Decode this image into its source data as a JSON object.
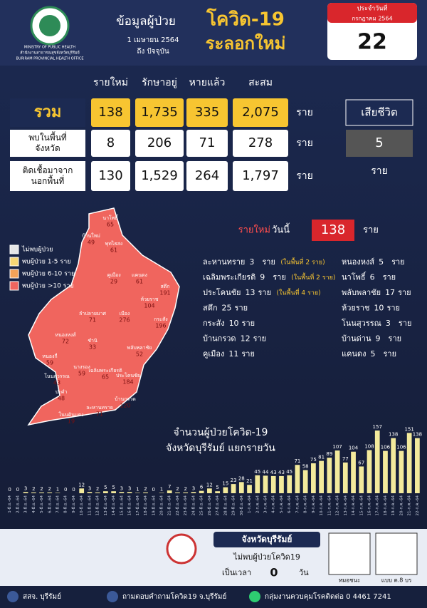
{
  "header": {
    "logo_text": [
      "MINISTRY OF PUBLIC HEALTH",
      "สำนักงานสาธารณสุขจังหวัดบุรีรัมย์",
      "BURIRAM PROVINCIAL HEALTH OFFICE"
    ],
    "title_prefix": "ข้อมูลผู้ป่วย",
    "title_main": "โควิด-19",
    "title_sub": "ระลอกใหม่",
    "date_from": "1 เมษายน 2564",
    "date_to": "ถึง ปัจจุบัน"
  },
  "calendar": {
    "label": "ประจำวันที่",
    "month": "กรกฎาคม 2564",
    "day": 22
  },
  "table": {
    "columns": [
      "รายใหม่",
      "รักษาอยู่",
      "หายแล้ว",
      "สะสม"
    ],
    "unit": "ราย",
    "rows": [
      {
        "label": [
          "รวม"
        ],
        "values": [
          138,
          1735,
          335,
          2075
        ],
        "value_labels": [
          "138",
          "1,735",
          "335",
          "2,075"
        ]
      },
      {
        "label": [
          "พบในพื้นที่",
          "จังหวัด"
        ],
        "values": [
          8,
          206,
          71,
          278
        ],
        "value_labels": [
          "8",
          "206",
          "71",
          "278"
        ]
      },
      {
        "label": [
          "ติดเชื้อมาจาก",
          "นอกพื้นที่"
        ],
        "values": [
          130,
          1529,
          264,
          1797
        ],
        "value_labels": [
          "130",
          "1,529",
          "264",
          "1,797"
        ]
      }
    ],
    "deaths": {
      "label": "เสียชีวิต",
      "value": 5,
      "unit": "ราย"
    }
  },
  "legend": [
    {
      "label": "ไม่พบผู้ป่วย",
      "color": "#e6e6e6"
    },
    {
      "label": "พบผู้ป่วย 1-5 ราย",
      "color": "#f7d774"
    },
    {
      "label": "พบผู้ป่วย 6-10 ราย",
      "color": "#f4a259"
    },
    {
      "label": "พบผู้ป่วย >10 ราย",
      "color": "#f0655e"
    }
  ],
  "today": {
    "label_a": "รายใหม่",
    "label_b": "วันนี้",
    "value": 138,
    "unit": "ราย"
  },
  "map_labels": [
    {
      "name": "นาโพธิ์",
      "value": 65
    },
    {
      "name": "บ้านใหม่",
      "value": 49
    },
    {
      "name": "พุทไธสง",
      "value": 61
    },
    {
      "name": "คูเมือง",
      "value": 29
    },
    {
      "name": "แคนดง",
      "value": 61
    },
    {
      "name": "สตึก",
      "value": 191
    },
    {
      "name": "ลำปลายมาศ",
      "value": 71
    },
    {
      "name": "เมือง",
      "value": 276
    },
    {
      "name": "ห้วยราช",
      "value": 104
    },
    {
      "name": "กระสัง",
      "value": 196
    },
    {
      "name": "หนองหงส์",
      "value": 72
    },
    {
      "name": "ชำนิ",
      "value": 33
    },
    {
      "name": "พลับพลาชัย",
      "value": 52
    },
    {
      "name": "หนองกี่",
      "value": 59
    },
    {
      "name": "นางรอง",
      "value": 59
    },
    {
      "name": "เฉลิมพระเกียรติ",
      "value": 65
    },
    {
      "name": "ประโคนชัย",
      "value": 184
    },
    {
      "name": "โนนสุวรรณ",
      "value": 43
    },
    {
      "name": "ปะคำ",
      "value": 48
    },
    {
      "name": "บ้านกรวด",
      "value": 120
    },
    {
      "name": "ละหานทราย",
      "value": 71
    },
    {
      "name": "โนนดินแดง",
      "value": 19
    }
  ],
  "districts": {
    "unit": "ราย",
    "left": [
      {
        "name": "ละหานทราย",
        "cases": 3,
        "note": "(ในพื้นที่ 2 ราย)"
      },
      {
        "name": "เฉลิมพระเกียรติ",
        "cases": 9,
        "note": "(ในพื้นที่ 2 ราย)"
      },
      {
        "name": "ประโคนชัย",
        "cases": 13,
        "note": "(ในพื้นที่ 4 ราย)"
      },
      {
        "name": "สตึก",
        "cases": 25
      },
      {
        "name": "กระสัง",
        "cases": 10
      },
      {
        "name": "บ้านกรวด",
        "cases": 12
      },
      {
        "name": "คูเมือง",
        "cases": 11
      }
    ],
    "right": [
      {
        "name": "หนองหงส์",
        "cases": 5
      },
      {
        "name": "นาโพธิ์",
        "cases": 6
      },
      {
        "name": "พลับพลาชัย",
        "cases": 17
      },
      {
        "name": "ห้วยราช",
        "cases": 10
      },
      {
        "name": "โนนสุวรรณ",
        "cases": 3
      },
      {
        "name": "บ้านด่าน",
        "cases": 9
      },
      {
        "name": "แคนดง",
        "cases": 5
      }
    ]
  },
  "chart_data": {
    "type": "bar",
    "title": "จำนวนผู้ป่วยโควิด-19",
    "subtitle": "จังหวัดบุรีรัมย์ แยกรายวัน",
    "color": "#f3ea9c",
    "categories": [
      "1-มิ.ย.-64",
      "2-มิ.ย.-64",
      "3-มิ.ย.-64",
      "4-มิ.ย.-64",
      "5-มิ.ย.-64",
      "6-มิ.ย.-64",
      "7-มิ.ย.-64",
      "8-มิ.ย.-64",
      "9-มิ.ย.-64",
      "10-มิ.ย.-64",
      "11-มิ.ย.-64",
      "12-มิ.ย.-64",
      "13-มิ.ย.-64",
      "14-มิ.ย.-64",
      "15-มิ.ย.-64",
      "16-มิ.ย.-64",
      "17-มิ.ย.-64",
      "18-มิ.ย.-64",
      "19-มิ.ย.-64",
      "20-มิ.ย.-64",
      "21-มิ.ย.-64",
      "22-มิ.ย.-64",
      "23-มิ.ย.-64",
      "24-มิ.ย.-64",
      "25-มิ.ย.-64",
      "26-มิ.ย.-64",
      "27-มิ.ย.-64",
      "28-มิ.ย.-64",
      "29-มิ.ย.-64",
      "30-มิ.ย.-64",
      "1-ก.ค.-64",
      "2-ก.ค.-64",
      "3-ก.ค.-64",
      "4-ก.ค.-64",
      "5-ก.ค.-64",
      "6-ก.ค.-64",
      "7-ก.ค.-64",
      "8-ก.ค.-64",
      "9-ก.ค.-64",
      "10-ก.ค.-64",
      "11-ก.ค.-64",
      "12-ก.ค.-64",
      "13-ก.ค.-64",
      "14-ก.ค.-64",
      "15-ก.ค.-64",
      "16-ก.ค.-64",
      "17-ก.ค.-64",
      "18-ก.ค.-64",
      "19-ก.ค.-64",
      "20-ก.ค.-64",
      "21-ก.ค.-64",
      "22-ก.ค.-64"
    ],
    "values": [
      0,
      0,
      3,
      2,
      2,
      2,
      1,
      0,
      0,
      12,
      3,
      2,
      5,
      5,
      3,
      3,
      1,
      2,
      0,
      1,
      7,
      2,
      2,
      3,
      6,
      12,
      5,
      15,
      23,
      28,
      21,
      45,
      44,
      43,
      43,
      45,
      71,
      58,
      75,
      81,
      89,
      107,
      77,
      104,
      67,
      108,
      157,
      106,
      138,
      106,
      151,
      138
    ]
  },
  "bottom": {
    "province": "จังหวัดบุรีรัมย์",
    "no_case": "ไม่พบผู้ป่วยโควิด19",
    "duration_label": "เป็นเวลา",
    "days": 0,
    "days_unit": "วัน",
    "qr": [
      "หมอชนะ",
      "แบบ ต.8 บร"
    ]
  },
  "footer": [
    "สสจ. บุรีรัมย์",
    "ถามตอบคำถามโควิด19 จ.บุรีรัมย์",
    "กลุ่มงานควบคุมโรคติดต่อ 0 4461 7241"
  ]
}
